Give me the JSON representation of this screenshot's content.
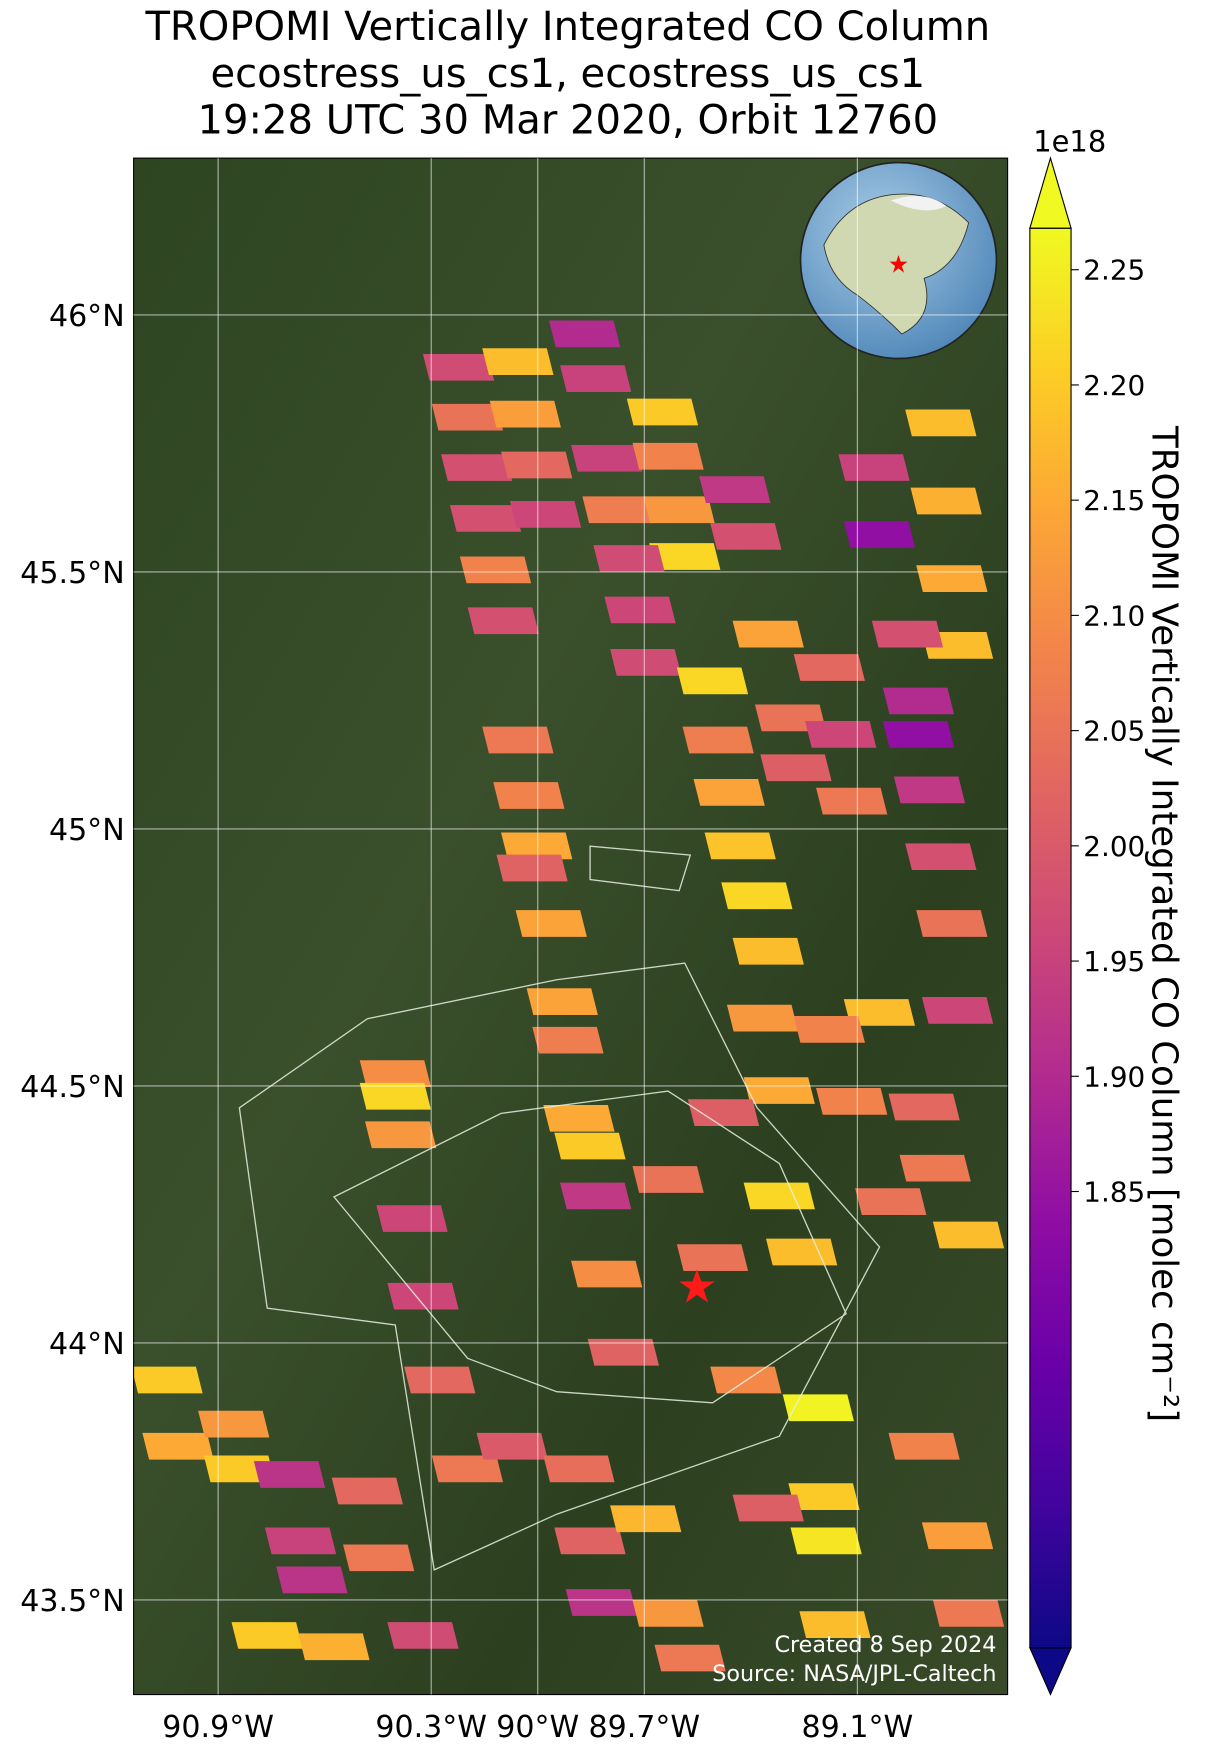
{
  "title": [
    "TROPOMI Vertically Integrated CO Column",
    "ecostress_us_cs1, ecostress_us_cs1",
    "19:28 UTC 30 Mar 2020, Orbit 12760"
  ],
  "map": {
    "xlim": [
      -91.138,
      -88.677
    ],
    "ylim": [
      43.316,
      46.305
    ],
    "xticks": [
      {
        "value": -90.9,
        "label": "90.9°W"
      },
      {
        "value": -90.3,
        "label": "90.3°W"
      },
      {
        "value": -90.0,
        "label": "90°W"
      },
      {
        "value": -89.7,
        "label": "89.7°W"
      },
      {
        "value": -89.1,
        "label": "89.1°W"
      }
    ],
    "yticks": [
      {
        "value": 46,
        "label": "46°N"
      },
      {
        "value": 45.5,
        "label": "45.5°N"
      },
      {
        "value": 45,
        "label": "45°N"
      },
      {
        "value": 44.5,
        "label": "44.5°N"
      },
      {
        "value": 44,
        "label": "44°N"
      },
      {
        "value": 43.5,
        "label": "43.5°N"
      }
    ],
    "grid": true,
    "cells": [
      {
        "lon": -90.223,
        "lat": 45.898,
        "value": 1.97
      },
      {
        "lon": -90.056,
        "lat": 45.909,
        "value": 2.18
      },
      {
        "lon": -90.198,
        "lat": 45.801,
        "value": 2.05
      },
      {
        "lon": -90.035,
        "lat": 45.807,
        "value": 2.13
      },
      {
        "lon": -90.172,
        "lat": 45.703,
        "value": 1.98
      },
      {
        "lon": -90.003,
        "lat": 45.708,
        "value": 2.03
      },
      {
        "lon": -90.147,
        "lat": 45.604,
        "value": 1.98
      },
      {
        "lon": -89.978,
        "lat": 45.612,
        "value": 1.96
      },
      {
        "lon": -90.119,
        "lat": 45.504,
        "value": 2.08
      },
      {
        "lon": -90.097,
        "lat": 45.405,
        "value": 1.98
      },
      {
        "lon": -89.868,
        "lat": 45.963,
        "value": 1.9
      },
      {
        "lon": -89.837,
        "lat": 45.876,
        "value": 1.95
      },
      {
        "lon": -89.649,
        "lat": 45.811,
        "value": 2.2
      },
      {
        "lon": -89.806,
        "lat": 45.721,
        "value": 1.95
      },
      {
        "lon": -89.633,
        "lat": 45.725,
        "value": 2.08
      },
      {
        "lon": -89.774,
        "lat": 45.621,
        "value": 2.07
      },
      {
        "lon": -89.602,
        "lat": 45.621,
        "value": 2.12
      },
      {
        "lon": -89.586,
        "lat": 45.53,
        "value": 2.22
      },
      {
        "lon": -89.743,
        "lat": 45.526,
        "value": 1.97
      },
      {
        "lon": -89.712,
        "lat": 45.426,
        "value": 1.96
      },
      {
        "lon": -89.696,
        "lat": 45.324,
        "value": 1.97
      },
      {
        "lon": -89.508,
        "lat": 45.288,
        "value": 2.22
      },
      {
        "lon": -89.445,
        "lat": 45.66,
        "value": 1.93
      },
      {
        "lon": -89.414,
        "lat": 45.569,
        "value": 1.98
      },
      {
        "lon": -89.351,
        "lat": 45.379,
        "value": 2.14
      },
      {
        "lon": -89.492,
        "lat": 45.173,
        "value": 2.07
      },
      {
        "lon": -89.288,
        "lat": 45.216,
        "value": 2.05
      },
      {
        "lon": -89.461,
        "lat": 45.071,
        "value": 2.14
      },
      {
        "lon": -89.273,
        "lat": 45.119,
        "value": 2.01
      },
      {
        "lon": -89.43,
        "lat": 44.967,
        "value": 2.19
      },
      {
        "lon": -89.383,
        "lat": 44.87,
        "value": 2.22
      },
      {
        "lon": -89.351,
        "lat": 44.762,
        "value": 2.18
      },
      {
        "lon": -89.053,
        "lat": 45.703,
        "value": 1.95
      },
      {
        "lon": -88.865,
        "lat": 45.79,
        "value": 2.18
      },
      {
        "lon": -89.038,
        "lat": 45.573,
        "value": 1.84
      },
      {
        "lon": -88.85,
        "lat": 45.638,
        "value": 2.16
      },
      {
        "lon": -88.834,
        "lat": 45.487,
        "value": 2.15
      },
      {
        "lon": -88.818,
        "lat": 45.357,
        "value": 2.18
      },
      {
        "lon": -88.959,
        "lat": 45.379,
        "value": 1.98
      },
      {
        "lon": -88.928,
        "lat": 45.249,
        "value": 1.9
      },
      {
        "lon": -88.928,
        "lat": 45.184,
        "value": 1.84
      },
      {
        "lon": -88.897,
        "lat": 45.076,
        "value": 1.93
      },
      {
        "lon": -88.865,
        "lat": 44.946,
        "value": 1.98
      },
      {
        "lon": -88.834,
        "lat": 44.816,
        "value": 2.05
      },
      {
        "lon": -89.179,
        "lat": 45.314,
        "value": 2.03
      },
      {
        "lon": -89.147,
        "lat": 45.184,
        "value": 1.96
      },
      {
        "lon": -89.116,
        "lat": 45.054,
        "value": 2.06
      },
      {
        "lon": -90.056,
        "lat": 45.173,
        "value": 2.06
      },
      {
        "lon": -90.025,
        "lat": 45.065,
        "value": 2.08
      },
      {
        "lon": -90.003,
        "lat": 44.967,
        "value": 2.15
      },
      {
        "lon": -90.016,
        "lat": 44.924,
        "value": 2.02
      },
      {
        "lon": -89.962,
        "lat": 44.816,
        "value": 2.14
      },
      {
        "lon": -89.367,
        "lat": 44.632,
        "value": 2.12
      },
      {
        "lon": -89.038,
        "lat": 44.643,
        "value": 2.18
      },
      {
        "lon": -88.818,
        "lat": 44.647,
        "value": 1.96
      },
      {
        "lon": -89.179,
        "lat": 44.61,
        "value": 2.08
      },
      {
        "lon": -89.32,
        "lat": 44.491,
        "value": 2.15
      },
      {
        "lon": -89.116,
        "lat": 44.47,
        "value": 2.08
      },
      {
        "lon": -88.912,
        "lat": 44.459,
        "value": 2.03
      },
      {
        "lon": -88.881,
        "lat": 44.34,
        "value": 2.06
      },
      {
        "lon": -88.787,
        "lat": 44.21,
        "value": 2.18
      },
      {
        "lon": -89.006,
        "lat": 44.275,
        "value": 2.05
      },
      {
        "lon": -89.21,
        "lat": 43.874,
        "value": 2.26
      },
      {
        "lon": -89.194,
        "lat": 43.701,
        "value": 2.2
      },
      {
        "lon": -89.188,
        "lat": 43.615,
        "value": 2.24
      },
      {
        "lon": -89.163,
        "lat": 43.452,
        "value": 2.18
      },
      {
        "lon": -88.912,
        "lat": 43.799,
        "value": 2.08
      },
      {
        "lon": -88.818,
        "lat": 43.625,
        "value": 2.13
      },
      {
        "lon": -88.787,
        "lat": 43.474,
        "value": 2.06
      },
      {
        "lon": -89.351,
        "lat": 43.679,
        "value": 2.01
      },
      {
        "lon": -91.044,
        "lat": 43.928,
        "value": 2.2
      },
      {
        "lon": -91.013,
        "lat": 43.799,
        "value": 2.15
      },
      {
        "lon": -90.856,
        "lat": 43.842,
        "value": 2.12
      },
      {
        "lon": -90.84,
        "lat": 43.755,
        "value": 2.2
      },
      {
        "lon": -90.699,
        "lat": 43.744,
        "value": 1.92
      },
      {
        "lon": -90.668,
        "lat": 43.615,
        "value": 1.95
      },
      {
        "lon": -90.636,
        "lat": 43.539,
        "value": 1.92
      },
      {
        "lon": -90.48,
        "lat": 43.712,
        "value": 2.03
      },
      {
        "lon": -90.448,
        "lat": 43.582,
        "value": 2.06
      },
      {
        "lon": -90.762,
        "lat": 43.431,
        "value": 2.2
      },
      {
        "lon": -90.574,
        "lat": 43.409,
        "value": 2.16
      },
      {
        "lon": -90.323,
        "lat": 43.431,
        "value": 1.97
      },
      {
        "lon": -90.401,
        "lat": 44.524,
        "value": 2.1
      },
      {
        "lon": -90.401,
        "lat": 44.48,
        "value": 2.22
      },
      {
        "lon": -90.386,
        "lat": 44.405,
        "value": 2.12
      },
      {
        "lon": -90.354,
        "lat": 44.242,
        "value": 1.96
      },
      {
        "lon": -90.323,
        "lat": 44.091,
        "value": 1.96
      },
      {
        "lon": -90.276,
        "lat": 43.928,
        "value": 2.03
      },
      {
        "lon": -89.931,
        "lat": 44.664,
        "value": 2.14
      },
      {
        "lon": -89.915,
        "lat": 44.589,
        "value": 2.07
      },
      {
        "lon": -89.884,
        "lat": 44.437,
        "value": 2.15
      },
      {
        "lon": -89.853,
        "lat": 44.383,
        "value": 2.2
      },
      {
        "lon": -89.837,
        "lat": 44.286,
        "value": 1.93
      },
      {
        "lon": -89.806,
        "lat": 44.134,
        "value": 2.1
      },
      {
        "lon": -89.759,
        "lat": 43.982,
        "value": 2.02
      },
      {
        "lon": -89.633,
        "lat": 44.318,
        "value": 2.05
      },
      {
        "lon": -89.477,
        "lat": 44.448,
        "value": 2.01
      },
      {
        "lon": -89.32,
        "lat": 44.286,
        "value": 2.22
      },
      {
        "lon": -89.257,
        "lat": 44.177,
        "value": 2.18
      },
      {
        "lon": -89.508,
        "lat": 44.166,
        "value": 2.05
      },
      {
        "lon": -89.414,
        "lat": 43.928,
        "value": 2.09
      },
      {
        "lon": -90.198,
        "lat": 43.755,
        "value": 2.06
      },
      {
        "lon": -90.072,
        "lat": 43.799,
        "value": 2.0
      },
      {
        "lon": -89.884,
        "lat": 43.755,
        "value": 2.04
      },
      {
        "lon": -89.853,
        "lat": 43.615,
        "value": 2.02
      },
      {
        "lon": -89.696,
        "lat": 43.658,
        "value": 2.17
      },
      {
        "lon": -89.821,
        "lat": 43.495,
        "value": 1.92
      },
      {
        "lon": -89.633,
        "lat": 43.474,
        "value": 2.12
      },
      {
        "lon": -89.571,
        "lat": 43.387,
        "value": 2.06
      }
    ]
  },
  "colorbar": {
    "label": "TROPOMI Vertically Integrated CO Column [molec cm⁻²]",
    "offset_text": "1e18",
    "colormap": "plasma",
    "clim": [
      1.652,
      2.268
    ],
    "extend": "both",
    "ticks": [
      1.85,
      {
        "value": 1.9,
        "label": "1.90"
      },
      1.95,
      {
        "value": 2.0,
        "label": "2.00"
      },
      2.05,
      {
        "value": 2.1,
        "label": "2.10"
      },
      2.15,
      {
        "value": 2.2,
        "label": "2.20"
      },
      2.25
    ]
  },
  "credits": [
    "Created 8 Sep 2024",
    "Source: NASA/JPL-Caltech"
  ]
}
